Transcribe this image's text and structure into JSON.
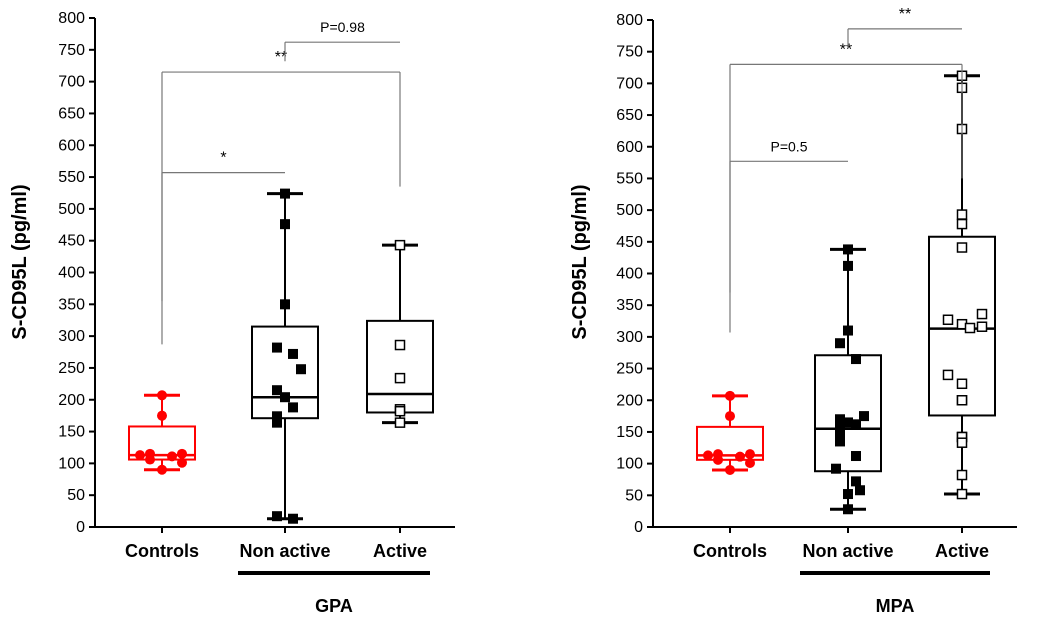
{
  "chart_data": [
    {
      "type": "box",
      "panel": "left",
      "title": "",
      "ylabel": "S-CD95L (pg/ml)",
      "ylim": [
        0,
        800
      ],
      "yticks": [
        0,
        50,
        100,
        150,
        200,
        250,
        300,
        350,
        400,
        450,
        500,
        550,
        600,
        650,
        700,
        750,
        800
      ],
      "categories": [
        "Controls",
        "Non active",
        "Active"
      ],
      "group_label": "GPA",
      "colors": {
        "Controls": "#ff0000",
        "Non active": "#000000",
        "Active": "#000000"
      },
      "markers": {
        "Controls": "filled-circle",
        "Non active": "filled-square",
        "Active": "open-square"
      },
      "boxes": [
        {
          "category": "Controls",
          "min": 90,
          "q1": 106,
          "median": 113,
          "q3": 158,
          "max": 207
        },
        {
          "category": "Non active",
          "min": 13,
          "q1": 171,
          "median": 204,
          "q3": 315,
          "max": 524
        },
        {
          "category": "Active",
          "min": 164,
          "q1": 180,
          "median": 209,
          "q3": 324,
          "max": 443
        }
      ],
      "points": [
        {
          "category": "Controls",
          "values": [
            207,
            175,
            115,
            113,
            111,
            115,
            101,
            106,
            90
          ]
        },
        {
          "category": "Non active",
          "values": [
            524,
            476,
            350,
            282,
            272,
            248,
            215,
            204,
            188,
            174,
            164,
            17,
            13
          ]
        },
        {
          "category": "Active",
          "values": [
            443,
            286,
            234,
            185,
            182,
            164
          ]
        }
      ],
      "brackets": [
        {
          "from": "Controls",
          "to": "Non active",
          "label": "*",
          "y": 557
        },
        {
          "from": "Controls",
          "to": "Active",
          "label": "**",
          "y": 715
        },
        {
          "from": "Non active",
          "to": "Active",
          "label": "P=0.98",
          "y": 762
        }
      ]
    },
    {
      "type": "box",
      "panel": "right",
      "title": "",
      "ylabel": "S-CD95L (pg/ml)",
      "ylim": [
        0,
        800
      ],
      "yticks": [
        0,
        50,
        100,
        150,
        200,
        250,
        300,
        350,
        400,
        450,
        500,
        550,
        600,
        650,
        700,
        750,
        800
      ],
      "categories": [
        "Controls",
        "Non active",
        "Active"
      ],
      "group_label": "MPA",
      "colors": {
        "Controls": "#ff0000",
        "Non active": "#000000",
        "Active": "#000000"
      },
      "markers": {
        "Controls": "filled-circle",
        "Non active": "filled-square",
        "Active": "open-square"
      },
      "boxes": [
        {
          "category": "Controls",
          "min": 90,
          "q1": 106,
          "median": 113,
          "q3": 158,
          "max": 207
        },
        {
          "category": "Non active",
          "min": 28,
          "q1": 88,
          "median": 155,
          "q3": 271,
          "max": 438
        },
        {
          "category": "Active",
          "min": 52,
          "q1": 176,
          "median": 313,
          "q3": 458,
          "max": 712
        }
      ],
      "points": [
        {
          "category": "Controls",
          "values": [
            207,
            175,
            115,
            113,
            111,
            115,
            101,
            106,
            90
          ]
        },
        {
          "category": "Non active",
          "values": [
            438,
            412,
            310,
            290,
            265,
            175,
            170,
            165,
            162,
            155,
            150,
            135,
            112,
            92,
            72,
            58,
            52,
            28
          ]
        },
        {
          "category": "Active",
          "values": [
            712,
            693,
            628,
            493,
            478,
            441,
            336,
            327,
            320,
            316,
            314,
            240,
            226,
            200,
            200,
            142,
            142,
            133,
            82,
            52
          ]
        }
      ],
      "brackets": [
        {
          "from": "Controls",
          "to": "Non active",
          "label": "P=0.5",
          "y": 577
        },
        {
          "from": "Controls",
          "to": "Active",
          "label": "**",
          "y": 730
        },
        {
          "from": "Non active",
          "to": "Active",
          "label": "**",
          "y": 786
        }
      ]
    }
  ]
}
